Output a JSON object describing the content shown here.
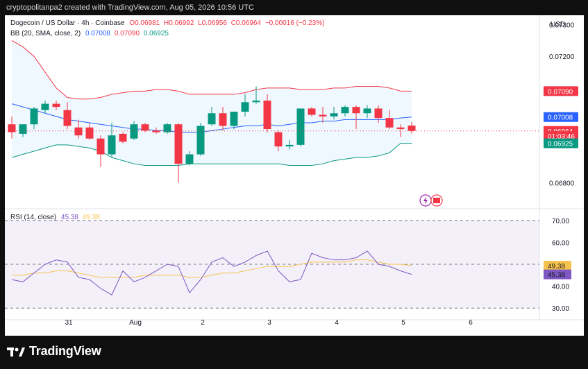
{
  "header": {
    "attribution": "cryptopolitanpa2 created with TradingView.com, Aug 05, 2026 10:56 UTC"
  },
  "legend": {
    "symbol": "Dogecoin / US Dollar · 4h · Coinbase",
    "open": "O0.06981",
    "high": "H0.06992",
    "low": "L0.06956",
    "close": "C0.06964",
    "change": "−0.00016 (−0.23%)",
    "bb_label": "BB (20, SMA, close, 2)",
    "bb_basis": "0.07008",
    "bb_upper": "0.07090",
    "bb_lower": "0.06925",
    "rsi_label": "RSI (14, close)",
    "rsi_value": "45.38",
    "rsi_ma": "49.38"
  },
  "currency": "USD",
  "price_scale": {
    "ticks": [
      "0.07300",
      "0.07200",
      "0.06800"
    ],
    "tags": [
      {
        "label": "0.07090",
        "value": 0.0709,
        "color": "#f23645",
        "kind": "filled"
      },
      {
        "label": "0.07008",
        "value": 0.07008,
        "color": "#2962ff",
        "kind": "filled"
      },
      {
        "label": "0.06964",
        "value": 0.06964,
        "color": "#f23645",
        "kind": "filled"
      },
      {
        "label": "01:03:46",
        "value": 0.06948,
        "color": "#f23645",
        "kind": "filled"
      },
      {
        "label": "0.06925",
        "value": 0.06925,
        "color": "#089981",
        "kind": "filled"
      }
    ]
  },
  "rsi_scale": {
    "ticks": [
      "70.00",
      "60.00",
      "50.00",
      "40.00",
      "30.00"
    ],
    "tags": [
      {
        "label": "49.38",
        "value": 49.38,
        "color": "#f7c34f"
      },
      {
        "label": "45.38",
        "value": 45.38,
        "color": "#7e57c2"
      }
    ]
  },
  "time_axis": [
    "31",
    "Aug",
    "2",
    "3",
    "4",
    "5",
    "6"
  ],
  "colors": {
    "up": "#089981",
    "down": "#f23645",
    "bb_basis": "#2962ff",
    "bb_upper": "#f23645",
    "bb_lower": "#089981",
    "rsi": "#7e57c2",
    "rsi_ma": "#f7c34f"
  },
  "footer": {
    "brand": "TradingView"
  },
  "chart_data": {
    "type": "candlestick",
    "timeframe": "4h",
    "price_range": [
      0.0672,
      0.0733
    ],
    "candles": [
      {
        "o": 0.06985,
        "h": 0.0701,
        "l": 0.0694,
        "c": 0.0696
      },
      {
        "o": 0.06955,
        "h": 0.06985,
        "l": 0.06945,
        "c": 0.06985
      },
      {
        "o": 0.06985,
        "h": 0.0704,
        "l": 0.0697,
        "c": 0.07035
      },
      {
        "o": 0.0703,
        "h": 0.0706,
        "l": 0.0702,
        "c": 0.0705
      },
      {
        "o": 0.0705,
        "h": 0.0706,
        "l": 0.0703,
        "c": 0.0704
      },
      {
        "o": 0.0703,
        "h": 0.07055,
        "l": 0.0697,
        "c": 0.0698
      },
      {
        "o": 0.06975,
        "h": 0.07,
        "l": 0.0694,
        "c": 0.0695
      },
      {
        "o": 0.06975,
        "h": 0.0699,
        "l": 0.06935,
        "c": 0.0694
      },
      {
        "o": 0.0694,
        "h": 0.0695,
        "l": 0.0685,
        "c": 0.0689
      },
      {
        "o": 0.0689,
        "h": 0.0699,
        "l": 0.0688,
        "c": 0.0695
      },
      {
        "o": 0.06955,
        "h": 0.0696,
        "l": 0.06925,
        "c": 0.0693
      },
      {
        "o": 0.0694,
        "h": 0.06995,
        "l": 0.06935,
        "c": 0.06985
      },
      {
        "o": 0.06985,
        "h": 0.0699,
        "l": 0.0696,
        "c": 0.06965
      },
      {
        "o": 0.06965,
        "h": 0.06975,
        "l": 0.06955,
        "c": 0.0696
      },
      {
        "o": 0.0696,
        "h": 0.0699,
        "l": 0.06955,
        "c": 0.06985
      },
      {
        "o": 0.06985,
        "h": 0.0699,
        "l": 0.068,
        "c": 0.0686
      },
      {
        "o": 0.0686,
        "h": 0.069,
        "l": 0.06855,
        "c": 0.0689
      },
      {
        "o": 0.0689,
        "h": 0.0699,
        "l": 0.06885,
        "c": 0.0698
      },
      {
        "o": 0.06985,
        "h": 0.0704,
        "l": 0.0698,
        "c": 0.0702
      },
      {
        "o": 0.0702,
        "h": 0.0704,
        "l": 0.06965,
        "c": 0.0698
      },
      {
        "o": 0.0698,
        "h": 0.07025,
        "l": 0.0697,
        "c": 0.07025
      },
      {
        "o": 0.07025,
        "h": 0.0708,
        "l": 0.0701,
        "c": 0.07055
      },
      {
        "o": 0.07055,
        "h": 0.07105,
        "l": 0.0705,
        "c": 0.0706
      },
      {
        "o": 0.0706,
        "h": 0.0708,
        "l": 0.0696,
        "c": 0.0697
      },
      {
        "o": 0.0696,
        "h": 0.06965,
        "l": 0.069,
        "c": 0.06915
      },
      {
        "o": 0.06915,
        "h": 0.06935,
        "l": 0.06905,
        "c": 0.0692
      },
      {
        "o": 0.0692,
        "h": 0.07035,
        "l": 0.06915,
        "c": 0.07035
      },
      {
        "o": 0.07035,
        "h": 0.0704,
        "l": 0.0701,
        "c": 0.07015
      },
      {
        "o": 0.07015,
        "h": 0.0704,
        "l": 0.0699,
        "c": 0.0701
      },
      {
        "o": 0.0701,
        "h": 0.0704,
        "l": 0.07,
        "c": 0.0702
      },
      {
        "o": 0.0702,
        "h": 0.07045,
        "l": 0.0701,
        "c": 0.0704
      },
      {
        "o": 0.0704,
        "h": 0.07045,
        "l": 0.0697,
        "c": 0.0702
      },
      {
        "o": 0.0702,
        "h": 0.07045,
        "l": 0.07005,
        "c": 0.07035
      },
      {
        "o": 0.07035,
        "h": 0.07045,
        "l": 0.0699,
        "c": 0.07005
      },
      {
        "o": 0.07005,
        "h": 0.0703,
        "l": 0.0697,
        "c": 0.06975
      },
      {
        "o": 0.06975,
        "h": 0.06985,
        "l": 0.06945,
        "c": 0.0697
      },
      {
        "o": 0.06981,
        "h": 0.06992,
        "l": 0.06956,
        "c": 0.06964
      }
    ],
    "bb_upper": [
      0.0725,
      0.0723,
      0.072,
      0.0715,
      0.071,
      0.0707,
      0.07065,
      0.07065,
      0.0707,
      0.0708,
      0.07085,
      0.0709,
      0.0709,
      0.07095,
      0.07095,
      0.0709,
      0.0708,
      0.0708,
      0.0708,
      0.0708,
      0.0708,
      0.07085,
      0.07095,
      0.071,
      0.071,
      0.071,
      0.07095,
      0.07095,
      0.07095,
      0.071,
      0.071,
      0.07105,
      0.07105,
      0.07105,
      0.071,
      0.0709,
      0.0709
    ],
    "bb_basis": [
      0.0705,
      0.0704,
      0.0703,
      0.0702,
      0.0701,
      0.07,
      0.06995,
      0.0699,
      0.06985,
      0.0698,
      0.06975,
      0.0697,
      0.0697,
      0.06965,
      0.06965,
      0.0696,
      0.0696,
      0.0696,
      0.06965,
      0.0697,
      0.06975,
      0.0698,
      0.0698,
      0.06985,
      0.0698,
      0.06985,
      0.0699,
      0.0699,
      0.06995,
      0.06995,
      0.07,
      0.07,
      0.07,
      0.07,
      0.07,
      0.07005,
      0.07008
    ],
    "bb_lower": [
      0.0688,
      0.0689,
      0.069,
      0.0691,
      0.0692,
      0.0692,
      0.06915,
      0.0691,
      0.069,
      0.0688,
      0.0687,
      0.0686,
      0.06855,
      0.06855,
      0.06855,
      0.06855,
      0.0686,
      0.0686,
      0.0686,
      0.0686,
      0.0686,
      0.0686,
      0.0686,
      0.0686,
      0.0686,
      0.06855,
      0.06855,
      0.06855,
      0.0686,
      0.0687,
      0.06875,
      0.0688,
      0.0688,
      0.06885,
      0.06895,
      0.06925,
      0.06925
    ],
    "rsi_range": [
      25,
      75
    ],
    "rsi_bands": [
      30,
      70
    ],
    "rsi": [
      43,
      42,
      46,
      50,
      52,
      51,
      44,
      43,
      39,
      36,
      47,
      42,
      44,
      47,
      50,
      49,
      37,
      43,
      51,
      53,
      49,
      51,
      54,
      56,
      47,
      42,
      43,
      55,
      53,
      52,
      52,
      53,
      56,
      50,
      49,
      47,
      45.38
    ],
    "rsi_ma": [
      45,
      45,
      46,
      46,
      47,
      47,
      46,
      45,
      44,
      44,
      44,
      44,
      45,
      45,
      45,
      45,
      44,
      44,
      45,
      46,
      46,
      47,
      48,
      49,
      49,
      49,
      50,
      51,
      51,
      51,
      51,
      52,
      52,
      51,
      50,
      50,
      49.38
    ],
    "time_ticks": [
      "31",
      "Aug",
      "2",
      "3",
      "4",
      "5",
      "6"
    ]
  }
}
